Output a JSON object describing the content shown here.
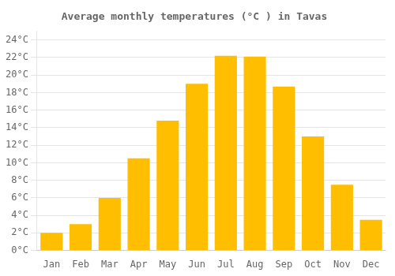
{
  "chart_data": {
    "type": "bar",
    "title": "Average monthly temperatures (°C ) in Tavas",
    "categories": [
      "Jan",
      "Feb",
      "Mar",
      "Apr",
      "May",
      "Jun",
      "Jul",
      "Aug",
      "Sep",
      "Oct",
      "Nov",
      "Dec"
    ],
    "values": [
      2,
      3,
      6,
      10.5,
      14.8,
      19,
      22.2,
      22.1,
      18.7,
      13,
      7.5,
      3.5
    ],
    "color": "#FFBE00",
    "ylim": [
      0,
      25
    ],
    "yticks": [
      {
        "value": 0,
        "label": "0°C"
      },
      {
        "value": 2,
        "label": "2°C"
      },
      {
        "value": 4,
        "label": "4°C"
      },
      {
        "value": 6,
        "label": "6°C"
      },
      {
        "value": 8,
        "label": "8°C"
      },
      {
        "value": 10,
        "label": "10°C"
      },
      {
        "value": 12,
        "label": "12°C"
      },
      {
        "value": 14,
        "label": "14°C"
      },
      {
        "value": 16,
        "label": "16°C"
      },
      {
        "value": 18,
        "label": "18°C"
      },
      {
        "value": 20,
        "label": "20°C"
      },
      {
        "value": 22,
        "label": "22°C"
      },
      {
        "value": 24,
        "label": "24°C"
      }
    ],
    "grid": true
  }
}
